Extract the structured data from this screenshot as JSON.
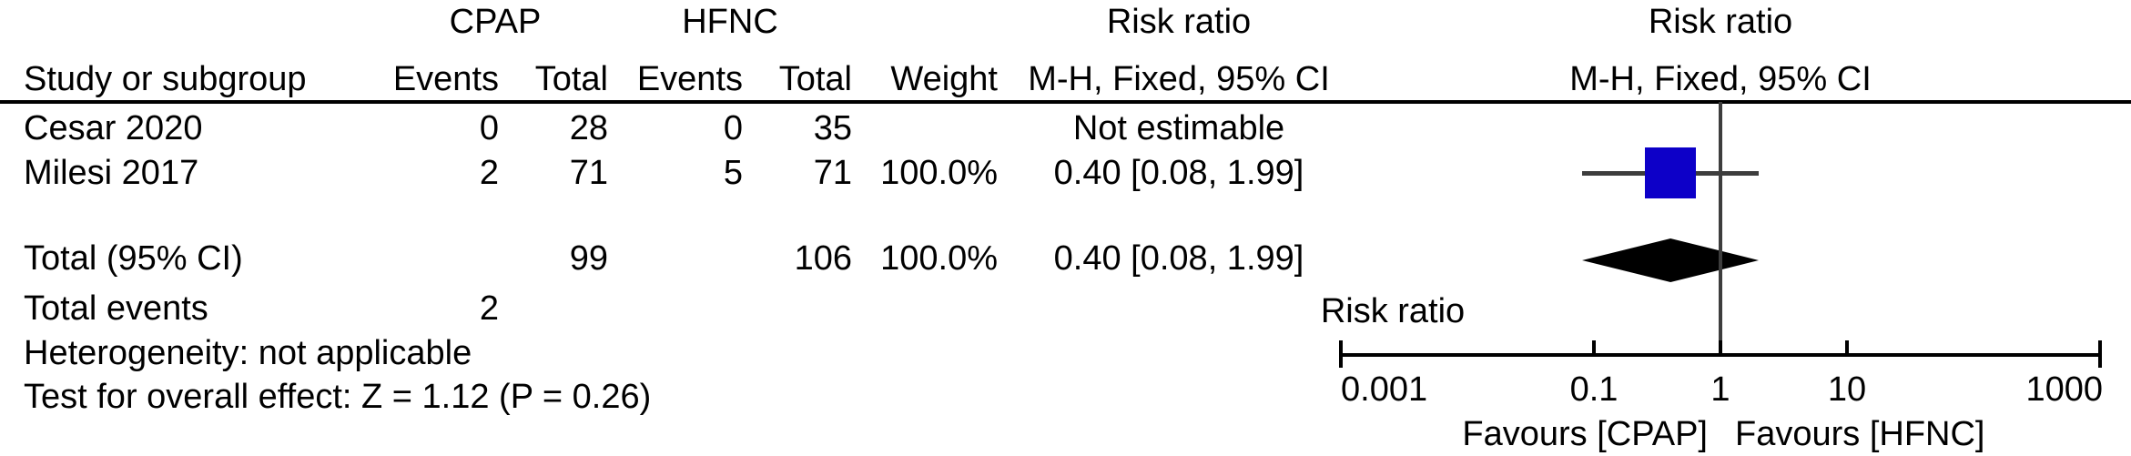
{
  "figure": {
    "columns": {
      "study": "Study or subgroup",
      "cpap_group": "CPAP",
      "hfnc_group": "HFNC",
      "events": "Events",
      "total": "Total",
      "weight": "Weight",
      "risk_ratio": "Risk ratio",
      "method": "M-H, Fixed, 95% CI"
    },
    "rows": [
      {
        "study": "Cesar 2020",
        "cpap_events": "0",
        "cpap_total": "28",
        "hfnc_events": "0",
        "hfnc_total": "35",
        "weight": "",
        "ci": "Not estimable"
      },
      {
        "study": "Milesi 2017",
        "cpap_events": "2",
        "cpap_total": "71",
        "hfnc_events": "5",
        "hfnc_total": "71",
        "weight": "100.0%",
        "ci": "0.40 [0.08, 1.99]"
      }
    ],
    "total_row": {
      "label": "Total (95% CI)",
      "cpap_total": "99",
      "hfnc_total": "106",
      "weight": "100.0%",
      "ci": "0.40 [0.08, 1.99]"
    },
    "total_events": {
      "label": "Total events",
      "cpap_value": "2"
    },
    "footnotes": {
      "heterogeneity": "Heterogeneity: not applicable",
      "overall_effect": "Test for overall effect: Z = 1.12 (P = 0.26)"
    },
    "axis": {
      "title": "Risk ratio",
      "favours_left": "Favours [CPAP]",
      "favours_right": "Favours [HFNC]"
    },
    "colors": {
      "marker_blue": "#0D00C8",
      "diamond_black": "#000000",
      "line_gray": "#3D3D3D",
      "axis_black": "#000000"
    }
  },
  "chart_data": {
    "type": "scatter",
    "subtype": "forest_plot",
    "title": "Risk ratio",
    "xlabel": "Risk ratio",
    "xscale": "log",
    "xlim": [
      0.001,
      1000
    ],
    "x_ticks": [
      0.001,
      0.1,
      1,
      10,
      1000
    ],
    "null_line": 1,
    "legend_left": "Favours [CPAP]",
    "legend_right": "Favours [HFNC]",
    "studies": [
      {
        "name": "Cesar 2020",
        "cpap_events": 0,
        "cpap_total": 28,
        "hfnc_events": 0,
        "hfnc_total": 35,
        "weight_pct": null,
        "rr": null,
        "ci_low": null,
        "ci_high": null,
        "estimable": false,
        "note": "Not estimable"
      },
      {
        "name": "Milesi 2017",
        "cpap_events": 2,
        "cpap_total": 71,
        "hfnc_events": 5,
        "hfnc_total": 71,
        "weight_pct": 100.0,
        "rr": 0.4,
        "ci_low": 0.08,
        "ci_high": 1.99,
        "estimable": true,
        "marker": "blue-square"
      }
    ],
    "total": {
      "name": "Total (95% CI)",
      "cpap_total": 99,
      "hfnc_total": 106,
      "weight_pct": 100.0,
      "rr": 0.4,
      "ci_low": 0.08,
      "ci_high": 1.99,
      "marker": "black-diamond",
      "total_events_cpap": 2
    },
    "heterogeneity": "not applicable",
    "overall_effect": {
      "z": 1.12,
      "p": 0.26
    }
  }
}
